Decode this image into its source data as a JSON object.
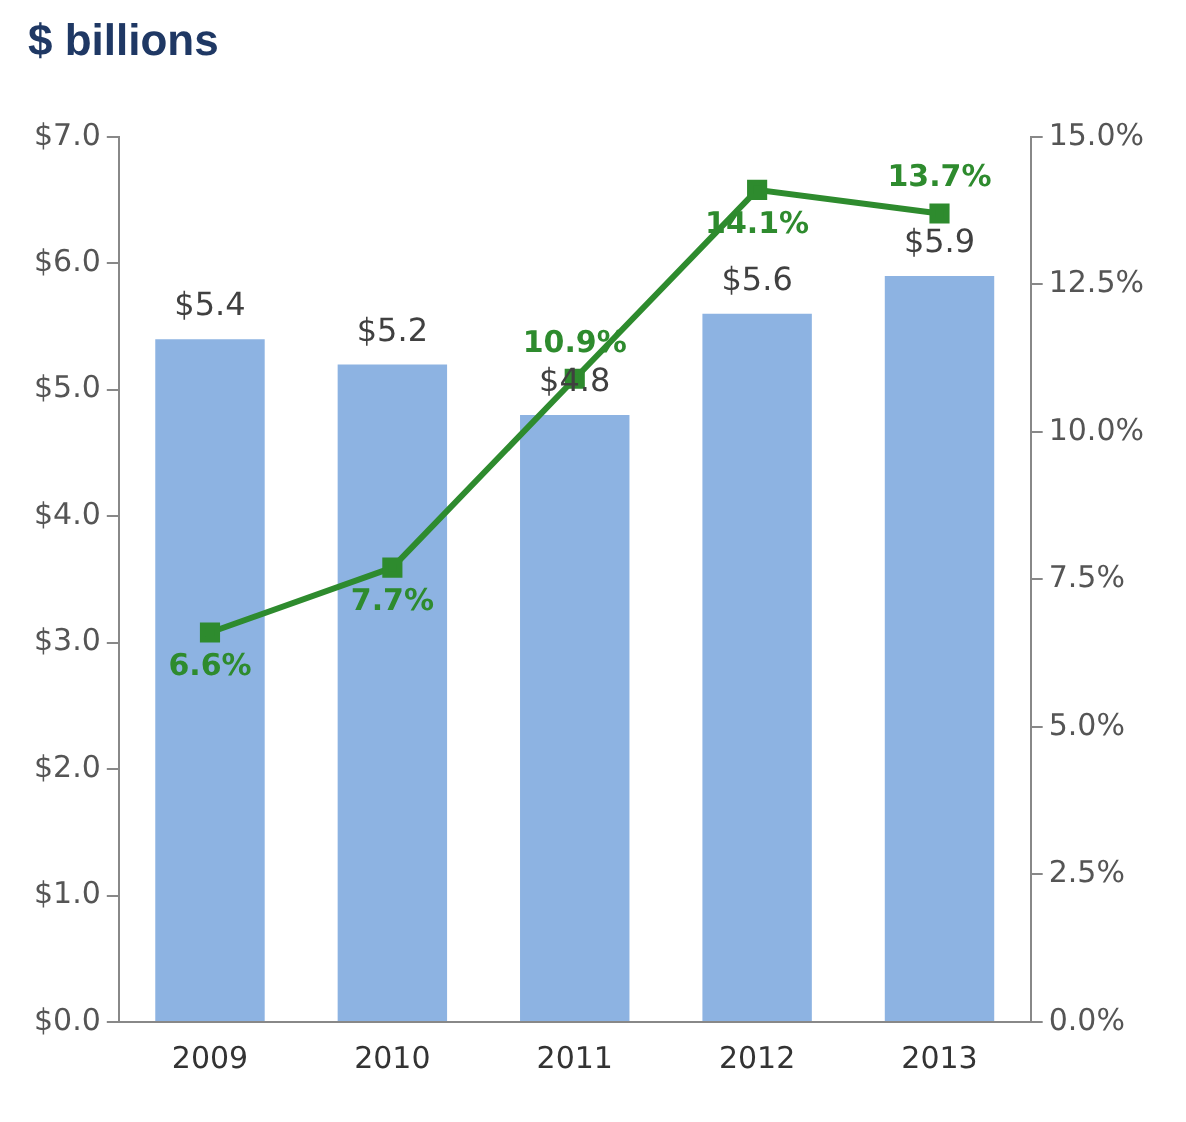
{
  "chart_data": {
    "type": "bar",
    "title": "$ billions",
    "categories": [
      "2009",
      "2010",
      "2011",
      "2012",
      "2013"
    ],
    "series": [
      {
        "color": "#8db3e2",
        "values": [
          5.4,
          5.2,
          4.8,
          5.6,
          5.9
        ],
        "value_labels": [
          "$5.4",
          "$5.2",
          "$4.8",
          "$5.6",
          "$5.9"
        ]
      },
      {
        "type": "line",
        "axis": "y2",
        "color": "#2e8b2e",
        "values": [
          6.6,
          7.7,
          10.9,
          14.1,
          13.7
        ],
        "value_labels": [
          "6.6%",
          "7.7%",
          "10.9%",
          "14.1%",
          "13.7%"
        ]
      }
    ],
    "ylim": [
      0,
      7
    ],
    "yticks": [
      {
        "value": 0,
        "label": "$0.0"
      },
      {
        "value": 1,
        "label": "$1.0"
      },
      {
        "value": 2,
        "label": "$2.0"
      },
      {
        "value": 3,
        "label": "$3.0"
      },
      {
        "value": 4,
        "label": "$4.0"
      },
      {
        "value": 5,
        "label": "$5.0"
      },
      {
        "value": 6,
        "label": "$6.0"
      },
      {
        "value": 7,
        "label": "$7.0"
      }
    ],
    "y2lim": [
      0,
      15
    ],
    "y2ticks": [
      {
        "value": 0,
        "label": "0.0%"
      },
      {
        "value": 2.5,
        "label": "2.5%"
      },
      {
        "value": 5,
        "label": "5.0%"
      },
      {
        "value": 7.5,
        "label": "7.5%"
      },
      {
        "value": 10,
        "label": "10.0%"
      },
      {
        "value": 12.5,
        "label": "12.5%"
      },
      {
        "value": 15,
        "label": "15.0%"
      }
    ],
    "grid": false,
    "legend": false,
    "marker": "square",
    "line_style": "solid"
  }
}
